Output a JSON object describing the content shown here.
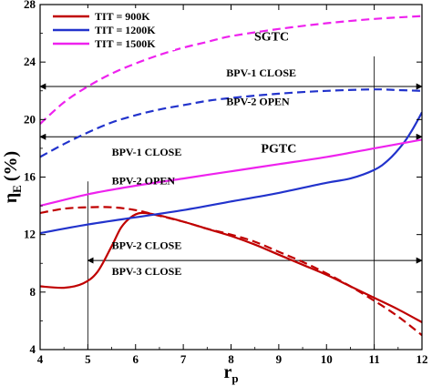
{
  "chart_data": {
    "type": "line",
    "title": "",
    "xlabel": "r",
    "xlabel_sub": "p",
    "ylabel": "η",
    "ylabel_sub": "E",
    "ylabel_unit": "(%)",
    "xlim": [
      4,
      12
    ],
    "ylim": [
      4,
      28
    ],
    "x_ticks": [
      4,
      5,
      6,
      7,
      8,
      9,
      10,
      11,
      12
    ],
    "y_ticks": [
      4,
      8,
      12,
      16,
      20,
      24,
      28
    ],
    "grid": false,
    "legend_position": "top-left",
    "legend": [
      {
        "label": "TIT = 900K",
        "color": "#c00000"
      },
      {
        "label": "TIT = 1200K",
        "color": "#2233cc"
      },
      {
        "label": "TIT = 1500K",
        "color": "#ee22ee"
      }
    ],
    "series": [
      {
        "group": "PGTC",
        "tit": "900K",
        "style": "solid",
        "color": "#c00000",
        "x": [
          4,
          4.5,
          4.9,
          5.2,
          5.5,
          5.7,
          5.9,
          6.1,
          6.4,
          7,
          7.5,
          8,
          8.5,
          9,
          9.5,
          10,
          10.5,
          11,
          11.5,
          12
        ],
        "y": [
          8.4,
          8.3,
          8.6,
          9.4,
          11.2,
          12.5,
          13.2,
          13.5,
          13.4,
          12.9,
          12.4,
          11.9,
          11.3,
          10.6,
          9.9,
          9.2,
          8.4,
          7.6,
          6.8,
          5.9
        ]
      },
      {
        "group": "SGTC",
        "tit": "900K",
        "style": "dashed",
        "color": "#c00000",
        "x": [
          4,
          4.5,
          5,
          5.5,
          6,
          6.5,
          7,
          7.5,
          8,
          8.5,
          9,
          9.5,
          10,
          10.5,
          11,
          11.5,
          12
        ],
        "y": [
          13.5,
          13.8,
          13.9,
          13.9,
          13.7,
          13.3,
          12.9,
          12.4,
          12.0,
          11.5,
          10.8,
          10.1,
          9.3,
          8.4,
          7.4,
          6.3,
          5.0
        ]
      },
      {
        "group": "PGTC",
        "tit": "1200K",
        "style": "solid",
        "color": "#2233cc",
        "x": [
          4,
          5,
          6,
          7,
          8,
          9,
          10,
          10.5,
          11,
          11.3,
          11.6,
          11.8,
          12
        ],
        "y": [
          12.1,
          12.7,
          13.2,
          13.7,
          14.3,
          14.9,
          15.6,
          15.9,
          16.5,
          17.2,
          18.3,
          19.3,
          20.5
        ]
      },
      {
        "group": "SGTC",
        "tit": "1200K",
        "style": "dashed",
        "color": "#2233cc",
        "x": [
          4,
          4.5,
          5,
          5.5,
          6,
          6.5,
          7,
          7.5,
          8,
          9,
          10,
          11,
          11.5,
          12
        ],
        "y": [
          17.4,
          18.3,
          19.1,
          19.8,
          20.3,
          20.7,
          21.0,
          21.3,
          21.5,
          21.8,
          22.0,
          22.1,
          22.05,
          22.0
        ]
      },
      {
        "group": "PGTC",
        "tit": "1500K",
        "style": "solid",
        "color": "#ee22ee",
        "x": [
          4,
          5,
          6,
          7,
          8,
          9,
          10,
          11,
          12
        ],
        "y": [
          14.0,
          14.8,
          15.4,
          15.9,
          16.4,
          16.9,
          17.4,
          18.0,
          18.6
        ]
      },
      {
        "group": "SGTC",
        "tit": "1500K",
        "style": "dashed",
        "color": "#ee22ee",
        "x": [
          4,
          4.5,
          5,
          5.5,
          6,
          6.5,
          7,
          7.5,
          8,
          9,
          10,
          11,
          12
        ],
        "y": [
          19.7,
          21.2,
          22.3,
          23.2,
          23.9,
          24.5,
          25.0,
          25.4,
          25.8,
          26.3,
          26.7,
          27.0,
          27.2
        ]
      }
    ],
    "reference_lines": [
      {
        "orientation": "horizontal",
        "y": 22.3,
        "x_range": [
          4,
          12
        ]
      },
      {
        "orientation": "horizontal",
        "y": 18.8,
        "x_range": [
          4,
          12
        ]
      },
      {
        "orientation": "horizontal",
        "y": 10.2,
        "x_range": [
          5,
          12
        ]
      },
      {
        "orientation": "vertical",
        "x": 11,
        "y_range": [
          4,
          24.4
        ]
      },
      {
        "orientation": "vertical",
        "x": 5,
        "y_range": [
          4,
          15.7
        ]
      }
    ],
    "annotations": [
      {
        "text": "SGTC",
        "x": 8.85,
        "y": 25.5,
        "kind": "curve-label"
      },
      {
        "text": "PGTC",
        "x": 9.0,
        "y": 17.7,
        "kind": "curve-label"
      },
      {
        "text": "BPV-1 CLOSE",
        "x": 7.9,
        "y": 23.0,
        "kind": "note"
      },
      {
        "text": "BPV-2 OPEN",
        "x": 7.9,
        "y": 21.0,
        "kind": "note"
      },
      {
        "text": "BPV-1 CLOSE",
        "x": 5.5,
        "y": 17.5,
        "kind": "note"
      },
      {
        "text": "BPV-2 OPEN",
        "x": 5.5,
        "y": 15.5,
        "kind": "note"
      },
      {
        "text": "BPV-2 CLOSE",
        "x": 5.5,
        "y": 11.0,
        "kind": "note"
      },
      {
        "text": "BPV-3 CLOSE",
        "x": 5.5,
        "y": 9.2,
        "kind": "note"
      }
    ]
  }
}
